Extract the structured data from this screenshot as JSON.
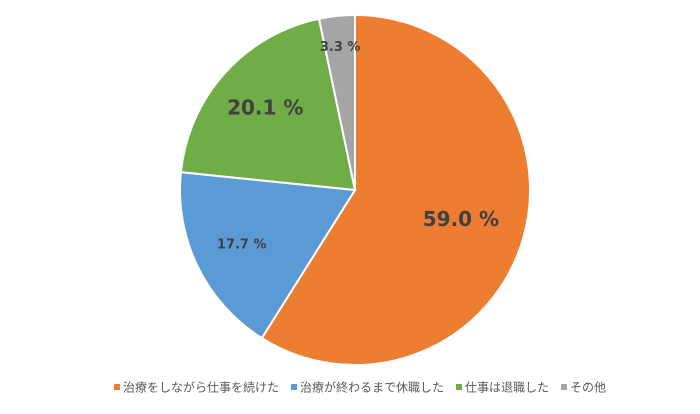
{
  "chart_data": {
    "type": "pie",
    "categories": [
      "治療をしながら仕事を続けた",
      "治療が終わるまで休職した",
      "仕事は退職した",
      "その他"
    ],
    "values": [
      59.0,
      17.7,
      20.1,
      3.3
    ],
    "value_labels": [
      "59.0 %",
      "17.7 %",
      "20.1 %",
      "3.3 %"
    ],
    "colors": [
      "#ED7D31",
      "#5B9BD5",
      "#70AD47",
      "#A5A5A5"
    ],
    "legend": "bottom"
  }
}
